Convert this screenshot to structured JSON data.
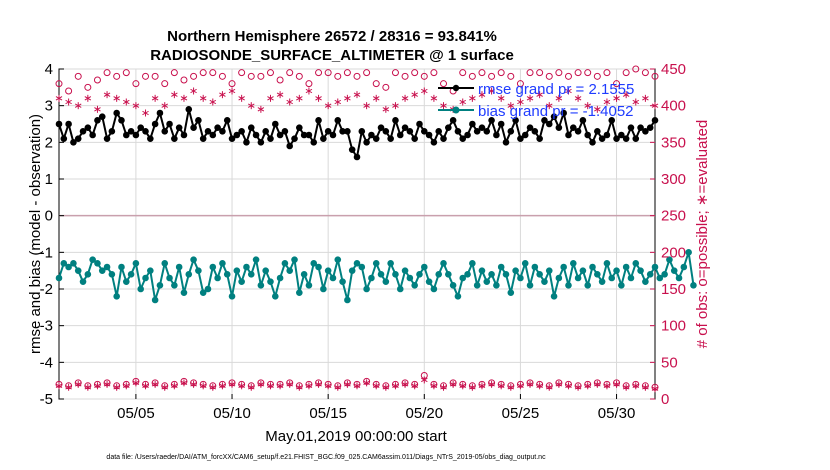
{
  "chart_data": {
    "type": "line",
    "title_line1": "Northern Hemisphere 26572 / 28316 = 93.841%",
    "title_line2": "RADIOSONDE_SURFACE_ALTIMETER @ 1 surface",
    "xlabel": "May.01,2019 00:00:00 start",
    "ylabel_left": "rmse and bias (model - observation)",
    "ylabel_right": "# of obs: o=possible; ∗=evaluated",
    "footer": "data file: /Users/raeder/DAI/ATM_forcXX/CAM6_setup/f.e21.FHIST_BGC.f09_025.CAM6assim.011/Diags_NTrS_2019-05/obs_diag_output.nc",
    "x_range": [
      1,
      32
    ],
    "x_ticks": [
      5,
      10,
      15,
      20,
      25,
      30
    ],
    "x_tick_labels": [
      "05/05",
      "05/10",
      "05/15",
      "05/20",
      "05/25",
      "05/30"
    ],
    "ylim_left": [
      -5,
      4
    ],
    "y_ticks_left": [
      "-5",
      "-4",
      "-3",
      "-2",
      "-1",
      "0",
      "1",
      "2",
      "3",
      "4"
    ],
    "ylim_right": [
      0,
      450
    ],
    "y_ticks_right": [
      "0",
      "50",
      "100",
      "150",
      "200",
      "250",
      "300",
      "350",
      "400",
      "450"
    ],
    "zero_line": 0,
    "colors": {
      "rmse": "#000000",
      "bias": "#008080",
      "obs": "#c8104d",
      "legend_text": "#1f3cff",
      "zero": "#c9a0ad"
    },
    "series": [
      {
        "name": "rmse",
        "legend": "rmse grand pr = 2.1555",
        "x_start": 1.0,
        "x_step": 0.25,
        "values": [
          2.5,
          2.1,
          2.5,
          2.0,
          2.1,
          2.3,
          2.4,
          2.2,
          2.6,
          2.7,
          2.1,
          2.3,
          2.8,
          2.6,
          2.2,
          2.3,
          2.2,
          2.4,
          2.3,
          2.1,
          2.5,
          2.8,
          2.3,
          2.5,
          2.1,
          2.4,
          2.2,
          2.9,
          2.4,
          2.6,
          2.1,
          2.3,
          2.2,
          2.4,
          2.3,
          2.6,
          2.1,
          2.2,
          2.3,
          2.0,
          2.4,
          2.2,
          2.0,
          2.3,
          2.1,
          2.5,
          2.2,
          2.3,
          1.9,
          2.1,
          2.4,
          2.2,
          2.2,
          2.0,
          2.6,
          2.1,
          2.3,
          2.2,
          2.6,
          2.3,
          2.3,
          1.8,
          1.6,
          2.3,
          2.0,
          2.2,
          2.1,
          2.4,
          2.3,
          2.1,
          2.6,
          2.2,
          2.4,
          2.3,
          2.1,
          2.5,
          2.3,
          2.2,
          2.0,
          2.3,
          2.1,
          2.4,
          2.6,
          2.3,
          2.1,
          2.2,
          2.5,
          2.3,
          2.4,
          2.3,
          2.6,
          2.2,
          2.5,
          2.0,
          2.3,
          2.6,
          2.1,
          2.2,
          2.4,
          2.3,
          2.1,
          2.6,
          2.5,
          2.7,
          2.4,
          2.8,
          2.2,
          2.4,
          2.3,
          2.6,
          2.2,
          2.0,
          2.3,
          2.1,
          2.2,
          2.6,
          2.1,
          2.2,
          2.1,
          2.4,
          2.1,
          2.4,
          2.3,
          2.4,
          2.6
        ]
      },
      {
        "name": "bias",
        "legend": "bias grand pr = -1.4052",
        "x_start": 1.0,
        "x_step": 0.25,
        "values": [
          -1.7,
          -1.3,
          -1.4,
          -1.3,
          -1.5,
          -1.8,
          -1.6,
          -1.2,
          -1.3,
          -1.5,
          -1.4,
          -1.6,
          -2.2,
          -1.4,
          -1.8,
          -1.6,
          -1.3,
          -2.0,
          -1.7,
          -1.5,
          -2.3,
          -1.9,
          -1.3,
          -1.7,
          -1.9,
          -1.4,
          -2.1,
          -1.6,
          -1.2,
          -1.5,
          -2.1,
          -2.0,
          -1.4,
          -1.7,
          -1.3,
          -1.6,
          -2.2,
          -1.5,
          -1.8,
          -1.4,
          -1.6,
          -1.2,
          -1.9,
          -1.5,
          -1.8,
          -2.2,
          -1.7,
          -1.3,
          -1.5,
          -1.2,
          -2.1,
          -1.6,
          -1.9,
          -1.3,
          -1.4,
          -2.0,
          -1.5,
          -1.7,
          -1.2,
          -1.8,
          -2.3,
          -1.5,
          -1.3,
          -1.4,
          -2.0,
          -1.7,
          -1.3,
          -1.6,
          -1.8,
          -1.3,
          -1.6,
          -2.0,
          -1.5,
          -1.7,
          -1.9,
          -1.6,
          -1.4,
          -1.8,
          -2.0,
          -1.6,
          -1.3,
          -1.6,
          -1.9,
          -2.2,
          -1.7,
          -1.6,
          -1.3,
          -1.9,
          -1.5,
          -1.8,
          -1.6,
          -1.9,
          -1.4,
          -1.6,
          -2.1,
          -1.5,
          -1.7,
          -1.3,
          -1.9,
          -1.4,
          -1.6,
          -1.8,
          -1.5,
          -2.2,
          -1.7,
          -1.4,
          -1.9,
          -1.3,
          -1.7,
          -1.5,
          -1.9,
          -1.4,
          -1.6,
          -1.8,
          -1.3,
          -1.7,
          -1.5,
          -1.9,
          -1.4,
          -1.7,
          -1.3,
          -1.5,
          -1.8,
          -1.6,
          -1.4,
          -1.7,
          -1.6,
          -1.2,
          -1.5,
          -1.7,
          -1.4,
          -1.0,
          -1.9
        ]
      },
      {
        "name": "obs_possible",
        "axis": "right",
        "x_start": 1.0,
        "x_step": 0.5,
        "values": [
          430,
          420,
          440,
          425,
          435,
          445,
          440,
          445,
          430,
          440,
          440,
          430,
          445,
          435,
          440,
          445,
          445,
          440,
          430,
          445,
          440,
          440,
          445,
          435,
          445,
          440,
          430,
          445,
          445,
          440,
          445,
          440,
          445,
          430,
          425,
          445,
          440,
          445,
          440,
          445,
          430,
          420,
          445,
          440,
          445,
          440,
          445,
          440,
          430,
          445,
          445,
          440,
          445,
          440,
          445,
          445,
          440,
          445,
          430,
          445,
          450,
          445,
          440
        ]
      },
      {
        "name": "obs_evaluated",
        "axis": "right",
        "x_start": 1.0,
        "x_step": 0.5,
        "values": [
          410,
          405,
          400,
          410,
          395,
          415,
          410,
          405,
          400,
          390,
          410,
          400,
          415,
          410,
          420,
          410,
          405,
          415,
          420,
          410,
          400,
          395,
          410,
          415,
          405,
          410,
          420,
          410,
          400,
          405,
          410,
          415,
          400,
          410,
          395,
          400,
          410,
          415,
          420,
          410,
          400,
          395,
          405,
          410,
          415,
          420,
          410,
          400,
          405,
          410,
          415,
          400,
          410,
          420,
          410,
          400,
          395,
          405,
          410,
          415,
          405,
          410,
          400
        ]
      },
      {
        "name": "obs_bottom_possible",
        "axis": "right",
        "x_start": 1.0,
        "x_step": 0.5,
        "values": [
          20,
          18,
          22,
          18,
          20,
          22,
          18,
          20,
          24,
          20,
          22,
          18,
          20,
          24,
          22,
          20,
          18,
          20,
          22,
          20,
          18,
          22,
          20,
          20,
          22,
          18,
          20,
          22,
          20,
          18,
          22,
          20,
          24,
          20,
          18,
          20,
          22,
          20,
          32,
          20,
          18,
          22,
          20,
          18,
          20,
          22,
          20,
          18,
          20,
          22,
          20,
          18,
          22,
          20,
          18,
          20,
          22,
          20,
          22,
          18,
          20,
          18,
          16
        ]
      },
      {
        "name": "obs_bottom_evaluated",
        "axis": "right",
        "x_start": 1.0,
        "x_step": 0.5,
        "values": [
          18,
          16,
          20,
          16,
          18,
          20,
          16,
          18,
          22,
          18,
          20,
          16,
          18,
          22,
          20,
          18,
          16,
          18,
          20,
          18,
          16,
          20,
          18,
          18,
          20,
          16,
          18,
          20,
          18,
          16,
          20,
          18,
          22,
          18,
          16,
          18,
          20,
          18,
          26,
          18,
          16,
          20,
          18,
          16,
          18,
          20,
          18,
          16,
          18,
          20,
          18,
          16,
          20,
          18,
          16,
          18,
          20,
          18,
          20,
          16,
          18,
          16,
          14
        ]
      }
    ]
  }
}
